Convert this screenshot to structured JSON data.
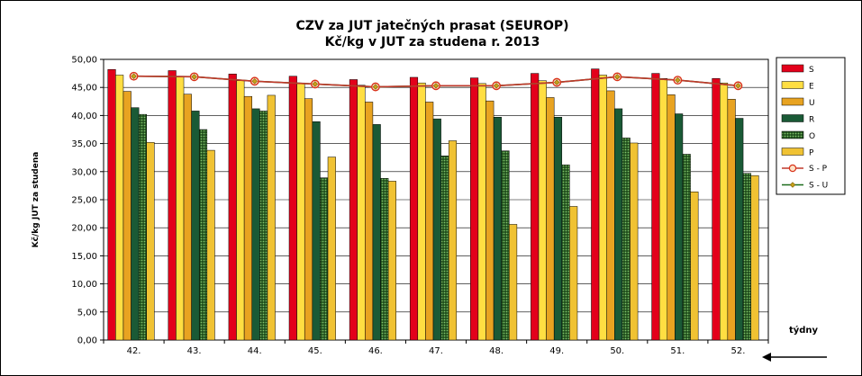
{
  "chart_data": {
    "type": "bar",
    "title": "CZV za JUT jatečných prasat (SEUROP)",
    "subtitle": "Kč/kg v JUT za studena r. 2013",
    "ylabel": "Kč/kg  JUT za studena",
    "xlabel": "týdny",
    "ylim": [
      0,
      50
    ],
    "ystep": 5,
    "yticks": [
      "0,00",
      "5,00",
      "10,00",
      "15,00",
      "20,00",
      "25,00",
      "30,00",
      "35,00",
      "40,00",
      "45,00",
      "50,00"
    ],
    "grid": "horizontal",
    "legend_position": "right",
    "categories": [
      "42.",
      "43.",
      "44.",
      "45.",
      "46.",
      "47.",
      "48.",
      "49.",
      "50.",
      "51.",
      "52."
    ],
    "series": [
      {
        "name": "S",
        "color": "#e3001b",
        "values": [
          48.2,
          48.0,
          47.4,
          47.0,
          46.4,
          46.8,
          46.7,
          47.5,
          48.3,
          47.5,
          46.6
        ]
      },
      {
        "name": "E",
        "color": "#ffde42",
        "values": [
          47.2,
          47.0,
          46.2,
          45.8,
          45.4,
          45.8,
          45.7,
          46.2,
          47.2,
          46.6,
          45.8
        ]
      },
      {
        "name": "U",
        "color": "#e8a321",
        "values": [
          44.3,
          43.8,
          43.4,
          43.0,
          42.4,
          42.4,
          42.6,
          43.2,
          44.4,
          43.7,
          42.9
        ]
      },
      {
        "name": "R",
        "color": "#1a5a36",
        "values": [
          41.4,
          40.8,
          41.2,
          38.9,
          38.4,
          39.4,
          39.7,
          39.7,
          41.2,
          40.3,
          39.5
        ]
      },
      {
        "name": "O",
        "color": "#4f8a2e",
        "pattern": "dots",
        "values": [
          40.2,
          37.5,
          40.8,
          28.9,
          28.8,
          32.8,
          33.7,
          31.2,
          36.0,
          33.1,
          29.7
        ]
      },
      {
        "name": "P",
        "color": "#f0c233",
        "values": [
          35.2,
          33.8,
          43.6,
          32.6,
          28.3,
          35.5,
          20.6,
          23.8,
          35.1,
          26.4,
          29.3
        ]
      }
    ],
    "lines": [
      {
        "name": "S - P",
        "color": "#c0392b",
        "marker": "circle",
        "values": [
          47.0,
          46.9,
          46.1,
          45.6,
          45.1,
          45.3,
          45.3,
          45.9,
          46.9,
          46.3,
          45.3
        ]
      },
      {
        "name": "S - U",
        "color": "#2e7d32",
        "marker": "diamond",
        "values": [
          47.0,
          46.9,
          46.1,
          45.6,
          45.1,
          45.3,
          45.3,
          45.9,
          46.9,
          46.3,
          45.3
        ]
      }
    ]
  }
}
